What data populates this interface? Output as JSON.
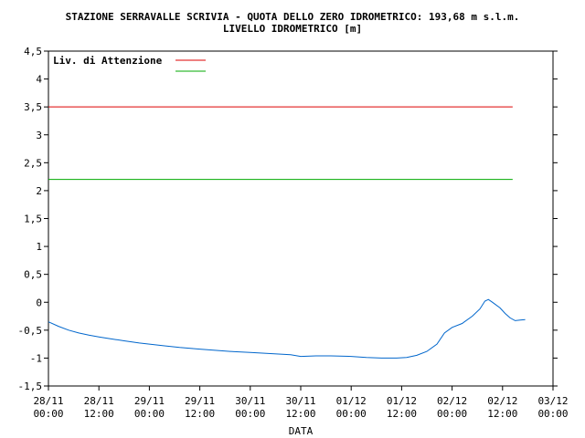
{
  "chart_data": {
    "type": "line",
    "title": "STAZIONE SERRAVALLE SCRIVIA - QUOTA DELLO ZERO IDROMETRICO: 193,68 m s.l.m.",
    "subtitle": "LIVELLO IDROMETRICO [m]",
    "xlabel": "DATA",
    "ylabel": "",
    "ylim": [
      -1.5,
      4.5
    ],
    "xlim": [
      0,
      10
    ],
    "y_ticks": [
      "4,5",
      "4",
      "3,5",
      "3",
      "2,5",
      "2",
      "1,5",
      "1",
      "0,5",
      "0",
      "-0,5",
      "-1",
      "-1,5"
    ],
    "x_ticks": [
      {
        "date": "28/11",
        "time": "00:00"
      },
      {
        "date": "28/11",
        "time": "12:00"
      },
      {
        "date": "29/11",
        "time": "00:00"
      },
      {
        "date": "29/11",
        "time": "12:00"
      },
      {
        "date": "30/11",
        "time": "00:00"
      },
      {
        "date": "30/11",
        "time": "12:00"
      },
      {
        "date": "01/12",
        "time": "00:00"
      },
      {
        "date": "01/12",
        "time": "12:00"
      },
      {
        "date": "02/12",
        "time": "00:00"
      },
      {
        "date": "02/12",
        "time": "12:00"
      },
      {
        "date": "03/12",
        "time": "00:00"
      }
    ],
    "grid": false,
    "legend": {
      "placement": "top-left",
      "entries": [
        {
          "label": "Liv. di Attenzione",
          "color": "#dd0000"
        },
        {
          "label": "",
          "color": "#00aa00"
        }
      ]
    },
    "thresholds": [
      {
        "name": "Liv. di Attenzione",
        "value": 3.5,
        "color": "#dd0000",
        "x_end": 9.2
      },
      {
        "name": "",
        "value": 2.2,
        "color": "#00aa00",
        "x_end": 9.2
      }
    ],
    "series": [
      {
        "color": "#0066cc",
        "points": [
          [
            0.0,
            -0.35
          ],
          [
            0.2,
            -0.43
          ],
          [
            0.4,
            -0.5
          ],
          [
            0.6,
            -0.55
          ],
          [
            0.8,
            -0.59
          ],
          [
            1.0,
            -0.62
          ],
          [
            1.2,
            -0.65
          ],
          [
            1.5,
            -0.69
          ],
          [
            1.8,
            -0.73
          ],
          [
            2.0,
            -0.75
          ],
          [
            2.3,
            -0.78
          ],
          [
            2.6,
            -0.81
          ],
          [
            3.0,
            -0.84
          ],
          [
            3.3,
            -0.86
          ],
          [
            3.6,
            -0.88
          ],
          [
            4.0,
            -0.9
          ],
          [
            4.4,
            -0.92
          ],
          [
            4.8,
            -0.94
          ],
          [
            5.0,
            -0.97
          ],
          [
            5.3,
            -0.96
          ],
          [
            5.6,
            -0.96
          ],
          [
            6.0,
            -0.97
          ],
          [
            6.3,
            -0.99
          ],
          [
            6.6,
            -1.0
          ],
          [
            6.9,
            -1.0
          ],
          [
            7.1,
            -0.99
          ],
          [
            7.3,
            -0.95
          ],
          [
            7.5,
            -0.88
          ],
          [
            7.7,
            -0.75
          ],
          [
            7.85,
            -0.55
          ],
          [
            8.0,
            -0.45
          ],
          [
            8.2,
            -0.38
          ],
          [
            8.4,
            -0.25
          ],
          [
            8.55,
            -0.12
          ],
          [
            8.65,
            0.02
          ],
          [
            8.72,
            0.05
          ],
          [
            8.8,
            0.0
          ],
          [
            8.95,
            -0.1
          ],
          [
            9.05,
            -0.2
          ],
          [
            9.15,
            -0.28
          ],
          [
            9.25,
            -0.33
          ],
          [
            9.35,
            -0.32
          ],
          [
            9.45,
            -0.31
          ]
        ]
      }
    ]
  }
}
